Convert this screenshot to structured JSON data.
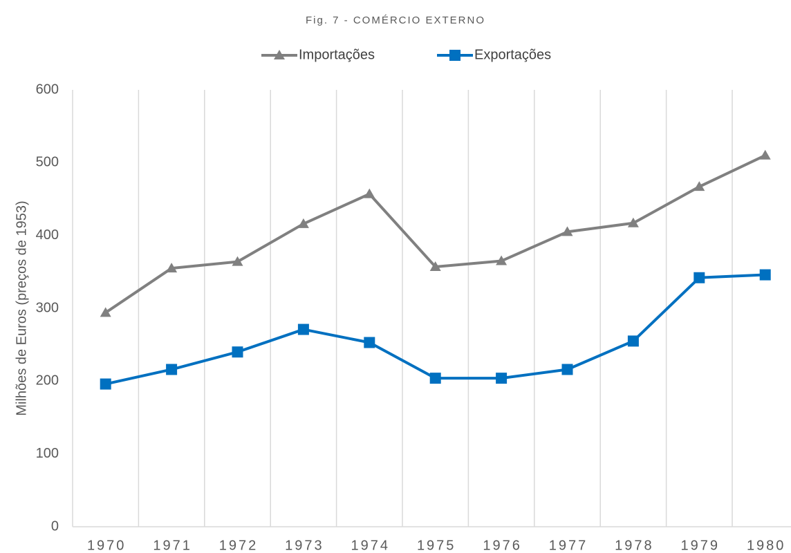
{
  "chart_data": {
    "type": "line",
    "title": "Fig. 7 - COMÉRCIO EXTERNO",
    "y_label": "Milhões de Euros (preços de 1953)",
    "categories": [
      "1970",
      "1971",
      "1972",
      "1973",
      "1974",
      "1975",
      "1976",
      "1977",
      "1978",
      "1979",
      "1980"
    ],
    "series": [
      {
        "name": "Importações",
        "color": "#808080",
        "marker": "triangle",
        "values": [
          294,
          355,
          364,
          416,
          457,
          357,
          365,
          405,
          417,
          467,
          510
        ]
      },
      {
        "name": "Exportações",
        "color": "#0070c0",
        "marker": "square",
        "values": [
          196,
          216,
          240,
          271,
          253,
          204,
          204,
          216,
          255,
          342,
          346
        ]
      }
    ],
    "ylim": [
      0,
      600
    ],
    "yticks": [
      0,
      100,
      200,
      300,
      400,
      500,
      600
    ],
    "grid": true,
    "legend": "top"
  }
}
